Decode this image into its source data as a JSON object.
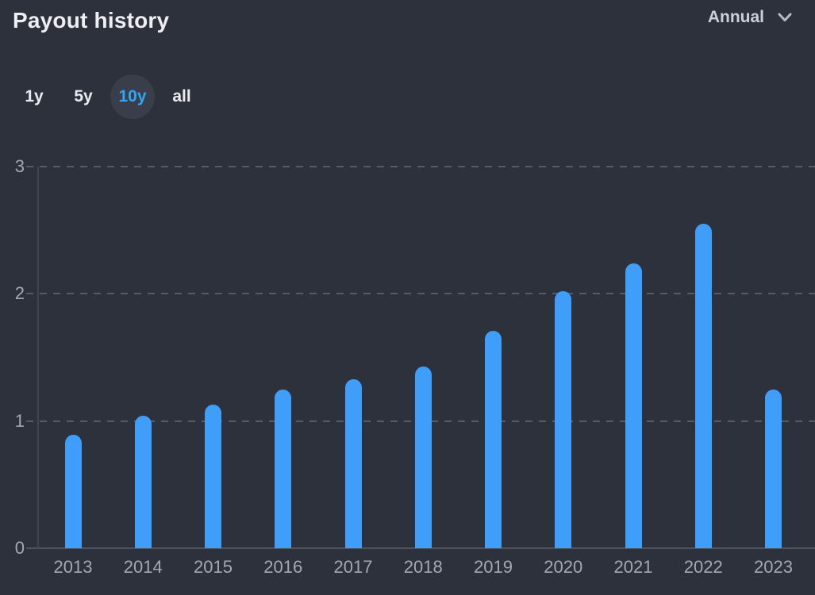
{
  "header": {
    "title": "Payout history",
    "period_selector": {
      "label": "Annual",
      "icon": "chevron-down-icon"
    }
  },
  "range_selector": {
    "options": [
      {
        "label": "1y",
        "selected": false
      },
      {
        "label": "5y",
        "selected": false
      },
      {
        "label": "10y",
        "selected": true
      },
      {
        "label": "all",
        "selected": false
      }
    ]
  },
  "chart_data": {
    "type": "bar",
    "title": "Payout history",
    "categories": [
      "2013",
      "2014",
      "2015",
      "2016",
      "2017",
      "2018",
      "2019",
      "2020",
      "2021",
      "2022",
      "2023"
    ],
    "values": [
      0.89,
      1.04,
      1.13,
      1.25,
      1.33,
      1.43,
      1.71,
      2.02,
      2.24,
      2.55,
      1.25
    ],
    "xlabel": "",
    "ylabel": "",
    "ylim": [
      0,
      3
    ],
    "yticks": [
      0,
      1,
      2,
      3
    ],
    "grid": "horizontal-dashed",
    "legend": "none",
    "bar_color": "#3e9ef9"
  },
  "colors": {
    "background": "#2d313b",
    "bar": "#3e9ef9",
    "accent_blue": "#2ea6f5",
    "title_text": "#edeff3",
    "axis_text": "#a3a9b4",
    "gridline": "#545a66",
    "selected_range_bg": "rgba(165,180,210,0.10)"
  }
}
